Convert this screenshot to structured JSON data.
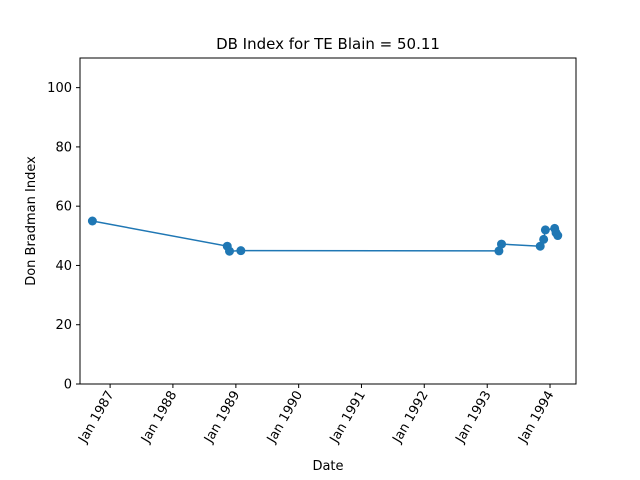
{
  "chart_data": {
    "type": "line",
    "title": "DB Index for TE Blain = 50.11",
    "xlabel": "Date",
    "ylabel": "Don Bradman Index",
    "xlim": [
      "1986-07-10",
      "1994-06-01"
    ],
    "ylim": [
      0,
      110
    ],
    "x_ticks": [
      {
        "date": "1987-01-01",
        "label": "Jan 1987"
      },
      {
        "date": "1988-01-01",
        "label": "Jan 1988"
      },
      {
        "date": "1989-01-01",
        "label": "Jan 1989"
      },
      {
        "date": "1990-01-01",
        "label": "Jan 1990"
      },
      {
        "date": "1991-01-01",
        "label": "Jan 1991"
      },
      {
        "date": "1992-01-01",
        "label": "Jan 1992"
      },
      {
        "date": "1993-01-01",
        "label": "Jan 1993"
      },
      {
        "date": "1994-01-01",
        "label": "Jan 1994"
      }
    ],
    "y_ticks": [
      0,
      20,
      40,
      60,
      80,
      100
    ],
    "grid": false,
    "color": "#1f77b4",
    "series": [
      {
        "x": [
          "1986-09-20",
          "1988-11-12",
          "1988-11-25",
          "1989-01-30",
          "1993-03-10",
          "1993-03-25",
          "1993-11-05",
          "1993-11-25",
          "1993-12-05",
          "1994-01-28",
          "1994-02-05",
          "1994-02-15"
        ],
        "y": [
          55.0,
          46.5,
          44.8,
          45.0,
          44.9,
          47.2,
          46.5,
          48.8,
          52.0,
          52.5,
          51.0,
          50.1
        ]
      }
    ]
  }
}
